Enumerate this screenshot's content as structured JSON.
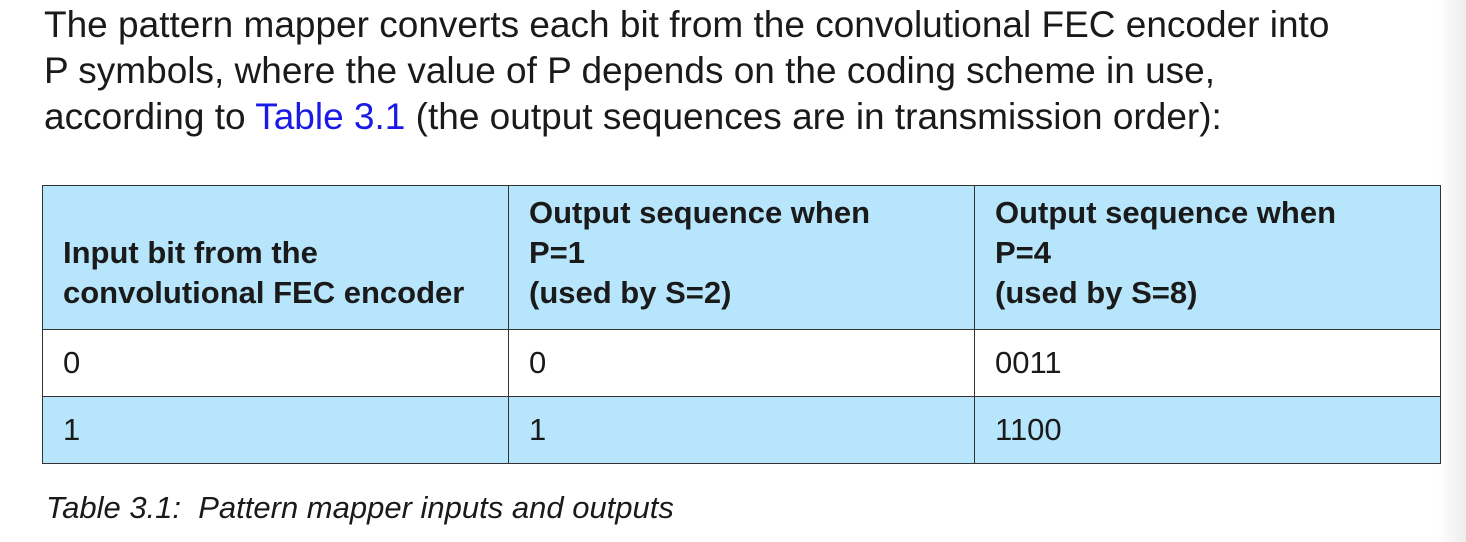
{
  "intro": {
    "line1": "The pattern mapper converts each bit from the convolutional FEC encoder into",
    "line2": "P symbols, where the value of P depends on the coding scheme in use,",
    "line3_prefix": "according to ",
    "line3_link": "Table 3.1",
    "line3_suffix": " (the output sequences are in transmission order):"
  },
  "table": {
    "headers": [
      {
        "lines": [
          "Input bit from the",
          "convolutional FEC encoder"
        ]
      },
      {
        "lines": [
          "Output sequence when",
          "P=1",
          "(used by S=2)"
        ]
      },
      {
        "lines": [
          "Output sequence when",
          "P=4",
          "(used by S=8)"
        ]
      }
    ],
    "rows": [
      [
        "0",
        "0",
        "0011"
      ],
      [
        "1",
        "1",
        "1100"
      ]
    ]
  },
  "caption": "Table 3.1:  Pattern mapper inputs and outputs",
  "colors": {
    "header_bg": "#b7e5fb",
    "link": "#1a1ae6",
    "border": "#333333"
  }
}
